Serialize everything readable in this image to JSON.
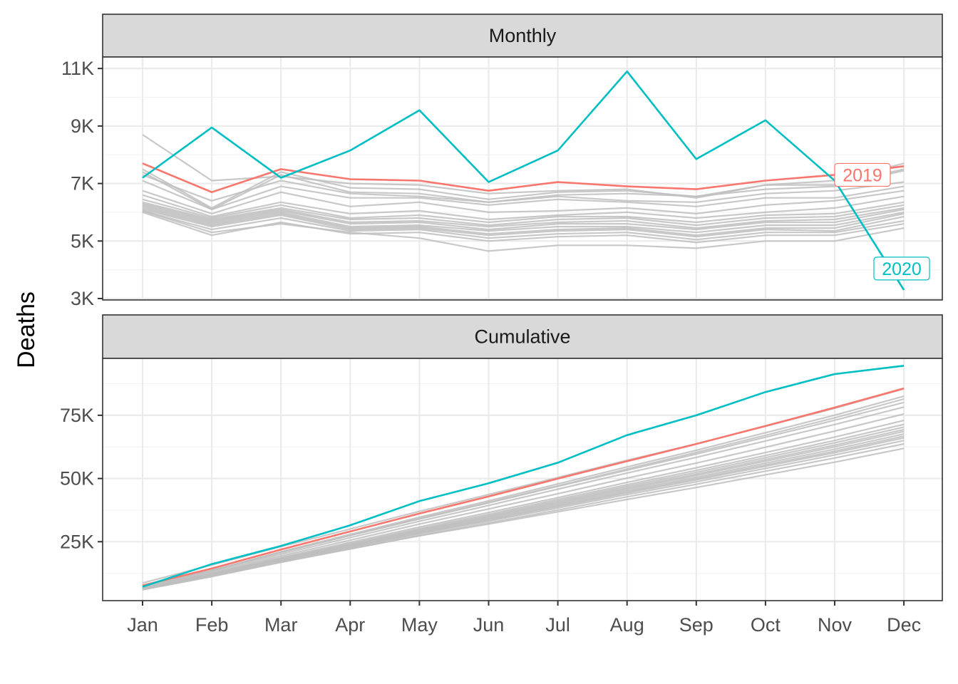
{
  "chart_data": {
    "type": "line",
    "ylabel": "Deaths",
    "xlabel": "",
    "categories": [
      "Jan",
      "Feb",
      "Mar",
      "Apr",
      "May",
      "Jun",
      "Jul",
      "Aug",
      "Sep",
      "Oct",
      "Nov",
      "Dec"
    ],
    "colors": {
      "highlight_2019": "#F8766D",
      "highlight_2020": "#00BFC4",
      "background_years": "#BEBEBE"
    },
    "grid": true,
    "panels": [
      {
        "id": "monthly",
        "strip_label": "Monthly",
        "ylim": [
          2950,
          11400
        ],
        "y_ticks": [
          {
            "value": 3000,
            "label": "3K"
          },
          {
            "value": 5000,
            "label": "5K"
          },
          {
            "value": 7000,
            "label": "7K"
          },
          {
            "value": 9000,
            "label": "9K"
          },
          {
            "value": 11000,
            "label": "11K"
          }
        ],
        "highlight_series": [
          {
            "name": "2019",
            "color": "#F8766D",
            "values": [
              7700,
              6700,
              7500,
              7150,
              7100,
              6750,
              7050,
              6900,
              6800,
              7100,
              7300,
              7600
            ]
          },
          {
            "name": "2020",
            "color": "#00BFC4",
            "values": [
              7200,
              8950,
              7200,
              8150,
              9550,
              7050,
              8150,
              10900,
              7850,
              9200,
              7100,
              3300
            ]
          }
        ],
        "background_series": [
          [
            8700,
            7100,
            7250,
            7000,
            6950,
            6650,
            6750,
            6800,
            6500,
            6950,
            7100,
            7700
          ],
          [
            7500,
            6150,
            7400,
            6850,
            6800,
            6450,
            6700,
            6750,
            6550,
            6950,
            6950,
            7500
          ],
          [
            7400,
            6100,
            7300,
            6700,
            6650,
            6350,
            6600,
            6650,
            6550,
            6800,
            6900,
            7450
          ],
          [
            7300,
            6400,
            7100,
            6650,
            6550,
            6350,
            6550,
            6400,
            6350,
            6650,
            6750,
            7050
          ],
          [
            7100,
            6100,
            6900,
            6500,
            6500,
            6250,
            6450,
            6350,
            6200,
            6500,
            6500,
            6900
          ],
          [
            6750,
            5950,
            6700,
            6200,
            6350,
            6000,
            6050,
            6150,
            5950,
            6250,
            6400,
            6750
          ],
          [
            6600,
            5850,
            6350,
            5950,
            6050,
            5750,
            5900,
            6000,
            5800,
            6000,
            6150,
            6550
          ],
          [
            6450,
            5800,
            6250,
            5800,
            5900,
            5650,
            5850,
            5850,
            5650,
            5900,
            5950,
            6350
          ],
          [
            6350,
            5750,
            6150,
            5750,
            5800,
            5550,
            5750,
            5800,
            5550,
            5800,
            5850,
            6250
          ],
          [
            6300,
            5700,
            6100,
            5650,
            5700,
            5500,
            5650,
            5700,
            5450,
            5700,
            5750,
            6150
          ],
          [
            6250,
            5650,
            6050,
            5600,
            5650,
            5400,
            5600,
            5600,
            5400,
            5650,
            5650,
            6100
          ],
          [
            6200,
            5600,
            6000,
            5500,
            5550,
            5350,
            5500,
            5500,
            5300,
            5550,
            5550,
            6000
          ],
          [
            6150,
            5550,
            5950,
            5450,
            5500,
            5250,
            5400,
            5450,
            5200,
            5450,
            5450,
            5950
          ],
          [
            6100,
            5500,
            5900,
            5400,
            5450,
            5200,
            5350,
            5400,
            5150,
            5400,
            5350,
            5850
          ],
          [
            6050,
            5400,
            5800,
            5350,
            5400,
            5100,
            5250,
            5300,
            5050,
            5300,
            5300,
            5700
          ],
          [
            6000,
            5200,
            5650,
            5250,
            5300,
            5000,
            5150,
            5200,
            4950,
            5200,
            5200,
            5600
          ],
          [
            6050,
            5300,
            5600,
            5300,
            5100,
            4650,
            4850,
            4850,
            4750,
            5000,
            5000,
            5450
          ]
        ]
      },
      {
        "id": "cumulative",
        "strip_label": "Cumulative",
        "ylim": [
          1700,
          97500
        ],
        "y_ticks": [
          {
            "value": 25000,
            "label": "25K"
          },
          {
            "value": 50000,
            "label": "50K"
          },
          {
            "value": 75000,
            "label": "75K"
          }
        ],
        "highlight_series": [
          {
            "name": "2019",
            "color": "#F8766D",
            "values": [
              7700,
              14400,
              21900,
              29050,
              36150,
              42900,
              49950,
              56850,
              63650,
              70750,
              78050,
              85650
            ]
          },
          {
            "name": "2020",
            "color": "#00BFC4",
            "values": [
              7200,
              16150,
              23350,
              31500,
              41050,
              48100,
              56250,
              67150,
              75000,
              84200,
              91300,
              94600
            ]
          }
        ],
        "background_series": [
          [
            8700,
            15800,
            23050,
            30050,
            37000,
            43650,
            50400,
            57200,
            63700,
            70650,
            77750,
            85450
          ],
          [
            7500,
            13650,
            21050,
            27900,
            34700,
            41150,
            47850,
            54600,
            61150,
            68100,
            75050,
            82550
          ],
          [
            7400,
            13500,
            20800,
            27500,
            34150,
            40500,
            47100,
            53750,
            60300,
            67100,
            74000,
            81450
          ],
          [
            7300,
            13700,
            20800,
            27450,
            34000,
            40350,
            46900,
            53300,
            59650,
            66300,
            73050,
            80100
          ],
          [
            7100,
            13200,
            20100,
            26600,
            33100,
            39350,
            45800,
            52150,
            58350,
            64850,
            71350,
            78250
          ],
          [
            6750,
            12700,
            19400,
            25600,
            31950,
            37950,
            44000,
            50150,
            56100,
            62350,
            68750,
            75500
          ],
          [
            6600,
            12450,
            18800,
            24750,
            30800,
            36550,
            42450,
            48450,
            54250,
            60250,
            66400,
            72950
          ],
          [
            6450,
            12250,
            18500,
            24300,
            30200,
            35850,
            41700,
            47550,
            53200,
            59100,
            65050,
            71400
          ],
          [
            6350,
            12100,
            18250,
            24000,
            29800,
            35350,
            41100,
            46900,
            52450,
            58250,
            64100,
            70350
          ],
          [
            6300,
            12000,
            18100,
            23750,
            29450,
            34950,
            40600,
            46300,
            51750,
            57450,
            63200,
            69350
          ],
          [
            6250,
            11900,
            17950,
            23550,
            29200,
            34600,
            40200,
            45800,
            51200,
            56850,
            62500,
            68600
          ],
          [
            6200,
            11800,
            17800,
            23300,
            28850,
            34200,
            39700,
            45200,
            50500,
            56050,
            61600,
            67600
          ],
          [
            6150,
            11700,
            17650,
            23100,
            28600,
            33850,
            39250,
            44700,
            49900,
            55350,
            60800,
            66750
          ],
          [
            6100,
            11600,
            17500,
            22900,
            28350,
            33550,
            38900,
            44300,
            49450,
            54850,
            60200,
            66050
          ],
          [
            6050,
            11450,
            17250,
            22600,
            28000,
            33100,
            38350,
            43650,
            48700,
            54000,
            59300,
            65000
          ],
          [
            6000,
            11200,
            16850,
            22100,
            27400,
            32400,
            37550,
            42750,
            47700,
            52900,
            58100,
            63700
          ],
          [
            6050,
            11350,
            16950,
            22250,
            27350,
            32000,
            36850,
            41700,
            46450,
            51450,
            56450,
            61900
          ]
        ]
      }
    ]
  }
}
